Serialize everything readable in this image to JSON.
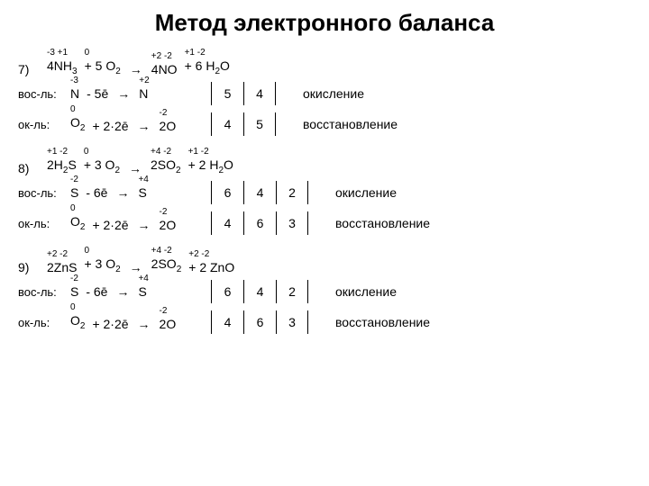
{
  "title": "Метод электронного баланса",
  "problems": [
    {
      "num": "7)",
      "eq": {
        "l1_ox": "-3 +1",
        "l1": "4NH",
        "l1_sub": "3",
        "l2_ox": "0",
        "l2_pre": "+ 5",
        "l2": "O",
        "l2_sub": "2",
        "r1_ox": "+2 -2",
        "r1_pre": "4",
        "r1": "NO",
        "r2_ox": "+1  -2",
        "r2_pre": "+ 6",
        "r2": "H",
        "r2_sub": "2",
        "r2b": "O"
      },
      "red": {
        "role": "вос-ль:",
        "el_ox": "-3",
        "el": "N",
        "change": "- 5ē",
        "arr": "→",
        "prod_ox": "+2",
        "prod": "N",
        "n1": "5",
        "n2": "4",
        "n3": "",
        "n4": "",
        "process": "окисление"
      },
      "oxi": {
        "role": "ок-ль:",
        "el_ox": "0",
        "el": "O",
        "el_sub": "2",
        "change": "+ 2·2ē",
        "arr": "→",
        "prod_ox": "-2",
        "prod": "2O",
        "n1": "4",
        "n2": "5",
        "n3": "",
        "n4": "",
        "process": "восстановление"
      },
      "cols": 2
    },
    {
      "num": "8)",
      "eq": {
        "l1_ox": "+1 -2",
        "l1": "2H",
        "l1_sub": "2",
        "l1b": "S",
        "l2_ox": "0",
        "l2_pre": "+ 3",
        "l2": "O",
        "l2_sub": "2",
        "r1_ox": "+4 -2",
        "r1_pre": "2",
        "r1": "SO",
        "r1_sub": "2",
        "r2_ox": "+1  -2",
        "r2_pre": "+ 2",
        "r2": "H",
        "r2_sub": "2",
        "r2b": "O"
      },
      "red": {
        "role": "вос-ль:",
        "el_ox": "-2",
        "el": "S",
        "change": "- 6ē",
        "arr": "→",
        "prod_ox": "+4",
        "prod": "S",
        "n1": "6",
        "n2": "4",
        "n3": "2",
        "n4": "",
        "process": "окисление"
      },
      "oxi": {
        "role": "ок-ль:",
        "el_ox": "0",
        "el": "O",
        "el_sub": "2",
        "change": "+ 2·2ē",
        "arr": "→",
        "prod_ox": "-2",
        "prod": "2O",
        "n1": "4",
        "n2": "6",
        "n3": "3",
        "n4": "",
        "process": "восстановление"
      },
      "cols": 3
    },
    {
      "num": "9)",
      "eq": {
        "l1_ox": "+2  -2",
        "l1": "2ZnS",
        "l2_ox": "0",
        "l2_pre": "+ 3",
        "l2": "O",
        "l2_sub": "2",
        "r1_ox": "+4 -2",
        "r1_pre": "2",
        "r1": "SO",
        "r1_sub": "2",
        "r2_ox": "+2  -2",
        "r2_pre": "+ 2",
        "r2": "ZnO"
      },
      "red": {
        "role": "вос-ль:",
        "el_ox": "-2",
        "el": "S",
        "change": "- 6ē",
        "arr": "→",
        "prod_ox": "+4",
        "prod": "S",
        "n1": "6",
        "n2": "4",
        "n3": "2",
        "n4": "",
        "process": "окисление"
      },
      "oxi": {
        "role": "ок-ль:",
        "el_ox": "0",
        "el": "O",
        "el_sub": "2",
        "change": "+ 2·2ē",
        "arr": "→",
        "prod_ox": "-2",
        "prod": "2O",
        "n1": "4",
        "n2": "6",
        "n3": "3",
        "n4": "",
        "process": "восстановление"
      },
      "cols": 3
    }
  ]
}
